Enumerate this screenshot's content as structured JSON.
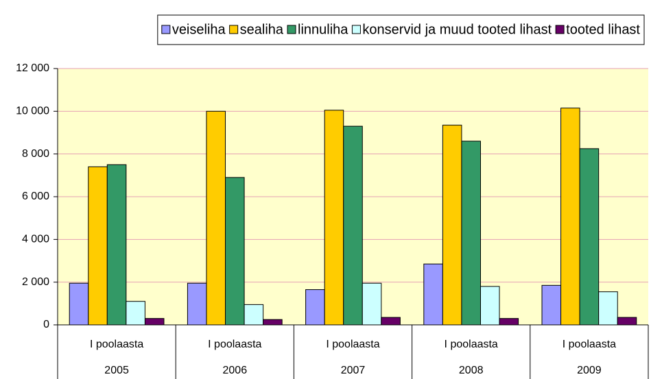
{
  "chart_data": {
    "type": "bar",
    "categories": [
      [
        "I poolaasta",
        "2005"
      ],
      [
        "I poolaasta",
        "2006"
      ],
      [
        "I poolaasta",
        "2007"
      ],
      [
        "I poolaasta",
        "2008"
      ],
      [
        "I poolaasta",
        "2009"
      ]
    ],
    "series": [
      {
        "name": "veiseliha",
        "color": "#9999ff",
        "values": [
          1950,
          1950,
          1650,
          2850,
          1850
        ]
      },
      {
        "name": "sealiha",
        "color": "#ffcc00",
        "values": [
          7400,
          10000,
          10050,
          9350,
          10150
        ]
      },
      {
        "name": "linnuliha",
        "color": "#339966",
        "values": [
          7500,
          6900,
          9300,
          8600,
          8250
        ]
      },
      {
        "name": "konservid ja muud tooted lihast",
        "color": "#ccffff",
        "values": [
          1100,
          950,
          1950,
          1800,
          1550
        ]
      },
      {
        "name": "tooted lihast",
        "color": "#660066",
        "values": [
          300,
          250,
          350,
          300,
          350
        ]
      }
    ],
    "ylim": [
      0,
      12000
    ],
    "yticks": [
      0,
      {
        "value": 2000,
        "label": "2 000"
      },
      {
        "value": 4000,
        "label": "4 000"
      },
      {
        "value": 6000,
        "label": "6 000"
      },
      {
        "value": 8000,
        "label": "8 000"
      },
      {
        "value": 10000,
        "label": "10 000"
      },
      {
        "value": 12000,
        "label": "12 000"
      }
    ],
    "grid": true,
    "legend": "top",
    "plot_background": "#ffffcc"
  }
}
